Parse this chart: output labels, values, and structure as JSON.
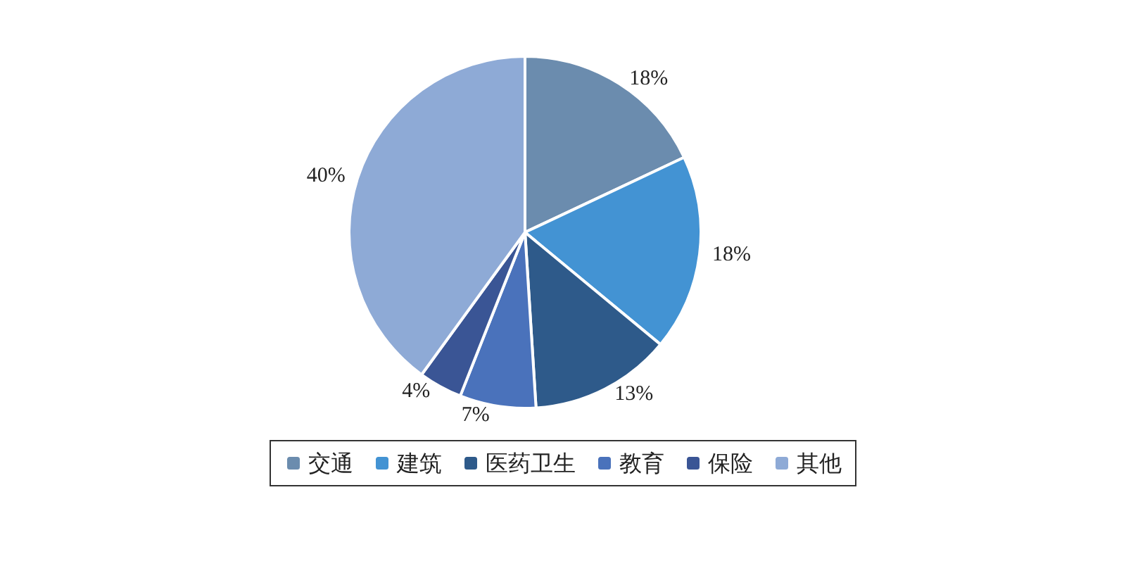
{
  "chart_data": {
    "type": "pie",
    "categories": [
      "交通",
      "建筑",
      "医药卫生",
      "教育",
      "保险",
      "其他"
    ],
    "values": [
      18,
      18,
      13,
      7,
      4,
      40
    ],
    "colors": [
      "#6b8cae",
      "#4393d3",
      "#2e5a8a",
      "#4a72bb",
      "#3a5595",
      "#8eaad6"
    ],
    "value_labels": [
      "18%",
      "18%",
      "13%",
      "7%",
      "4%",
      "40%"
    ],
    "legend": "bottom"
  }
}
